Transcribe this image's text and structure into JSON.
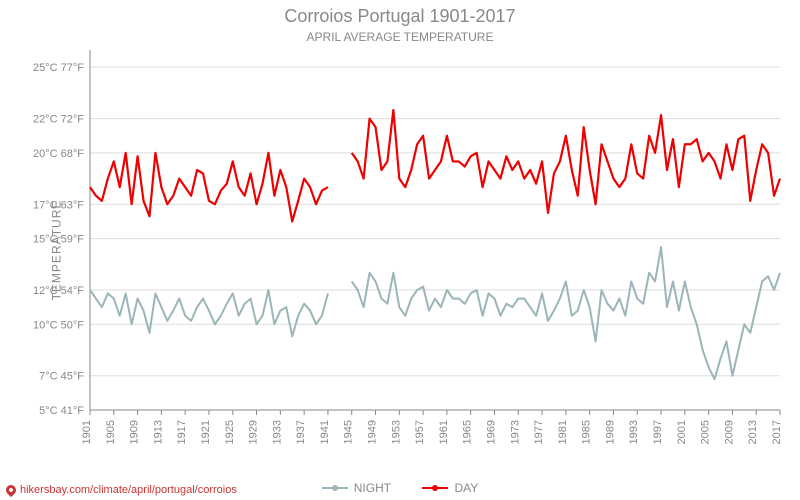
{
  "chart": {
    "title": "Corroios Portugal 1901-2017",
    "subtitle": "APRIL AVERAGE TEMPERATURE",
    "y_axis_label": "TEMPERATURE",
    "source_url": "hikersbay.com/climate/april/portugal/corroios",
    "background_color": "#ffffff",
    "grid_color": "#dddddd",
    "axis_color": "#888888",
    "text_color": "#888888",
    "title_fontsize": 18,
    "subtitle_fontsize": 12,
    "label_fontsize": 12,
    "tick_fontsize": 11,
    "plot": {
      "x_min": 1901,
      "x_max": 2017,
      "y_min_c": 5,
      "y_max_c": 26,
      "y_ticks_c": [
        5,
        7,
        10,
        12,
        15,
        17,
        20,
        22,
        25
      ],
      "y_ticks_f": [
        41,
        45,
        50,
        54,
        59,
        63,
        68,
        72,
        77
      ],
      "y_tick_labels": [
        "5°C 41°F",
        "7°C 45°F",
        "10°C 50°F",
        "12°C 54°F",
        "15°C 59°F",
        "17°C 63°F",
        "20°C 68°F",
        "22°C 72°F",
        "25°C 77°F"
      ],
      "x_ticks": [
        1901,
        1905,
        1909,
        1913,
        1917,
        1921,
        1925,
        1929,
        1933,
        1937,
        1941,
        1945,
        1949,
        1953,
        1957,
        1961,
        1965,
        1969,
        1973,
        1977,
        1981,
        1985,
        1989,
        1993,
        1997,
        2001,
        2005,
        2009,
        2013,
        2017
      ]
    },
    "legend": {
      "night": "NIGHT",
      "day": "DAY"
    },
    "series": {
      "day": {
        "color": "#ee0000",
        "stroke_width": 2.2,
        "marker": "circle",
        "marker_size": 3,
        "years": [
          1901,
          1902,
          1903,
          1904,
          1905,
          1906,
          1907,
          1908,
          1909,
          1910,
          1911,
          1912,
          1913,
          1914,
          1915,
          1916,
          1917,
          1918,
          1919,
          1920,
          1921,
          1922,
          1923,
          1924,
          1925,
          1926,
          1927,
          1928,
          1929,
          1930,
          1931,
          1932,
          1933,
          1934,
          1935,
          1936,
          1937,
          1938,
          1939,
          1940,
          1941,
          1945,
          1946,
          1947,
          1948,
          1949,
          1950,
          1951,
          1952,
          1953,
          1954,
          1955,
          1956,
          1957,
          1958,
          1959,
          1960,
          1961,
          1962,
          1963,
          1964,
          1965,
          1966,
          1967,
          1968,
          1969,
          1970,
          1971,
          1972,
          1973,
          1974,
          1975,
          1976,
          1977,
          1978,
          1979,
          1980,
          1981,
          1982,
          1983,
          1984,
          1985,
          1986,
          1987,
          1988,
          1989,
          1990,
          1991,
          1992,
          1993,
          1994,
          1995,
          1996,
          1997,
          1998,
          1999,
          2000,
          2001,
          2002,
          2003,
          2004,
          2005,
          2006,
          2007,
          2008,
          2009,
          2010,
          2011,
          2012,
          2013,
          2014,
          2015,
          2016,
          2017
        ],
        "values_c": [
          18.0,
          17.5,
          17.2,
          18.5,
          19.5,
          18.0,
          20.0,
          17.0,
          19.8,
          17.2,
          16.3,
          20.0,
          18.0,
          17.0,
          17.5,
          18.5,
          18.0,
          17.5,
          19.0,
          18.8,
          17.2,
          17.0,
          17.8,
          18.2,
          19.5,
          18.0,
          17.5,
          18.8,
          17.0,
          18.2,
          20.0,
          17.5,
          19.0,
          18.0,
          16.0,
          17.2,
          18.5,
          18.0,
          17.0,
          17.8,
          18.0,
          20.0,
          19.5,
          18.5,
          22.0,
          21.5,
          19.0,
          19.5,
          22.5,
          18.5,
          18.0,
          19.0,
          20.5,
          21.0,
          18.5,
          19.0,
          19.5,
          21.0,
          19.5,
          19.5,
          19.2,
          19.8,
          20.0,
          18.0,
          19.5,
          19.0,
          18.5,
          19.8,
          19.0,
          19.5,
          18.5,
          19.0,
          18.2,
          19.5,
          16.5,
          18.8,
          19.5,
          21.0,
          19.0,
          17.5,
          21.5,
          19.0,
          17.0,
          20.5,
          19.5,
          18.5,
          18.0,
          18.5,
          20.5,
          18.8,
          18.5,
          21.0,
          20.0,
          22.2,
          19.0,
          20.8,
          18.0,
          20.5,
          20.5,
          20.8,
          19.5,
          20.0,
          19.5,
          18.5,
          20.5,
          19.0,
          20.8,
          21.0,
          17.2,
          19.0,
          20.5,
          20.0,
          17.5,
          18.5
        ]
      },
      "night": {
        "color": "#9bb5b8",
        "stroke_width": 2.0,
        "marker": "circle",
        "marker_size": 3,
        "years": [
          1901,
          1902,
          1903,
          1904,
          1905,
          1906,
          1907,
          1908,
          1909,
          1910,
          1911,
          1912,
          1913,
          1914,
          1915,
          1916,
          1917,
          1918,
          1919,
          1920,
          1921,
          1922,
          1923,
          1924,
          1925,
          1926,
          1927,
          1928,
          1929,
          1930,
          1931,
          1932,
          1933,
          1934,
          1935,
          1936,
          1937,
          1938,
          1939,
          1940,
          1941,
          1945,
          1946,
          1947,
          1948,
          1949,
          1950,
          1951,
          1952,
          1953,
          1954,
          1955,
          1956,
          1957,
          1958,
          1959,
          1960,
          1961,
          1962,
          1963,
          1964,
          1965,
          1966,
          1967,
          1968,
          1969,
          1970,
          1971,
          1972,
          1973,
          1974,
          1975,
          1976,
          1977,
          1978,
          1979,
          1980,
          1981,
          1982,
          1983,
          1984,
          1985,
          1986,
          1987,
          1988,
          1989,
          1990,
          1991,
          1992,
          1993,
          1994,
          1995,
          1996,
          1997,
          1998,
          1999,
          2000,
          2001,
          2002,
          2003,
          2004,
          2005,
          2006,
          2007,
          2008,
          2009,
          2010,
          2011,
          2012,
          2013,
          2014,
          2015,
          2016,
          2017
        ],
        "values_c": [
          12.0,
          11.5,
          11.0,
          11.8,
          11.5,
          10.5,
          11.8,
          10.0,
          11.5,
          10.8,
          9.5,
          11.8,
          11.0,
          10.2,
          10.8,
          11.5,
          10.5,
          10.2,
          11.0,
          11.5,
          10.8,
          10.0,
          10.5,
          11.2,
          11.8,
          10.5,
          11.2,
          11.5,
          10.0,
          10.5,
          12.0,
          10.0,
          10.8,
          11.0,
          9.3,
          10.5,
          11.2,
          10.8,
          10.0,
          10.5,
          11.8,
          12.5,
          12.0,
          11.0,
          13.0,
          12.5,
          11.5,
          11.2,
          13.0,
          11.0,
          10.5,
          11.5,
          12.0,
          12.2,
          10.8,
          11.5,
          11.0,
          12.0,
          11.5,
          11.5,
          11.2,
          11.8,
          12.0,
          10.5,
          11.8,
          11.5,
          10.5,
          11.2,
          11.0,
          11.5,
          11.5,
          11.0,
          10.5,
          11.8,
          10.2,
          10.8,
          11.5,
          12.5,
          10.5,
          10.8,
          12.0,
          11.0,
          9.0,
          12.0,
          11.2,
          10.8,
          11.5,
          10.5,
          12.5,
          11.5,
          11.2,
          13.0,
          12.5,
          14.5,
          11.0,
          12.5,
          10.8,
          12.5,
          11.0,
          10.0,
          8.5,
          7.5,
          6.8,
          8.0,
          9.0,
          7.0,
          8.5,
          10.0,
          9.5,
          11.0,
          12.5,
          12.8,
          12.0,
          13.0
        ]
      }
    }
  }
}
